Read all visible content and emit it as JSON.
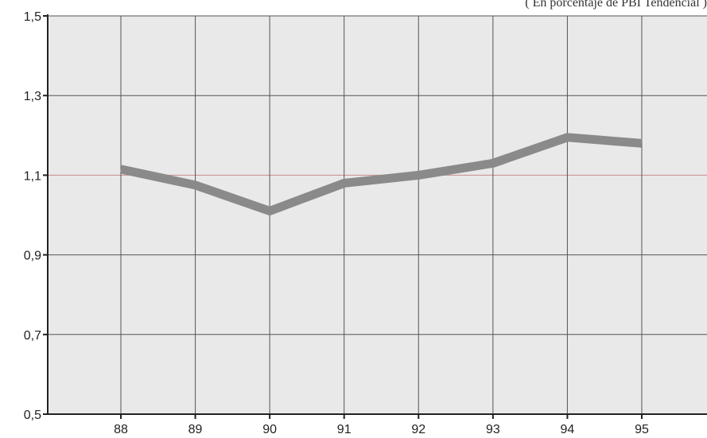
{
  "chart_data": {
    "type": "line",
    "title": "",
    "subtitle": "( En porcentaje de PBI Tendencial )",
    "xlabel": "",
    "ylabel": "",
    "x": [
      "88",
      "89",
      "90",
      "91",
      "92",
      "93",
      "94",
      "95"
    ],
    "series": [
      {
        "values": [
          1.115,
          1.075,
          1.01,
          1.08,
          1.1,
          1.13,
          1.195,
          1.18
        ]
      }
    ],
    "ylim": [
      0.5,
      1.5
    ],
    "yticks": [
      "0,5",
      "0,7",
      "0,9",
      "1,1",
      "1,3",
      "1,5"
    ],
    "grid": true,
    "colors": {
      "line": "#8a8a8a",
      "plot_background": "#e9e9e9",
      "grid": "#555555",
      "reference_line": "#c98a8a"
    }
  }
}
